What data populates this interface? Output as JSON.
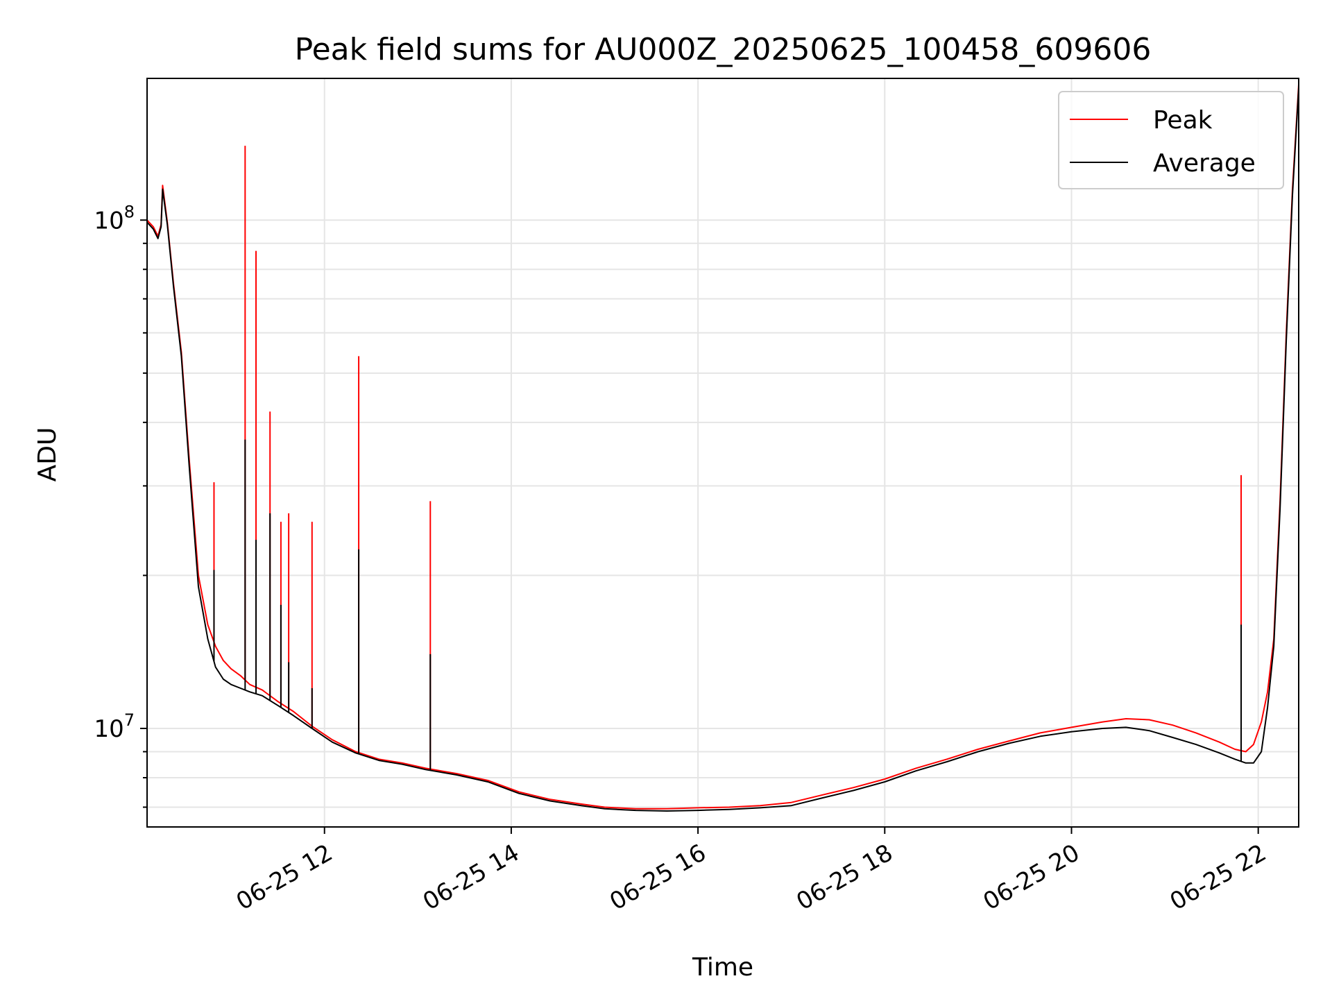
{
  "chart_data": {
    "type": "line",
    "title": "Peak field sums for AU000Z_20250625_100458_609606",
    "xlabel": "Time",
    "ylabel": "ADU",
    "y_scale": "log",
    "ylim": [
      6400000,
      190000000
    ],
    "xlim": [
      "06-25 10:06",
      "06-25 22:26"
    ],
    "x_ticks": [
      {
        "t": "06-25 12:00",
        "label": "06-25 12"
      },
      {
        "t": "06-25 14:00",
        "label": "06-25 14"
      },
      {
        "t": "06-25 16:00",
        "label": "06-25 16"
      },
      {
        "t": "06-25 18:00",
        "label": "06-25 18"
      },
      {
        "t": "06-25 20:00",
        "label": "06-25 20"
      },
      {
        "t": "06-25 22:00",
        "label": "06-25 22"
      }
    ],
    "y_ticks": [
      {
        "value": 10000000,
        "base": "10",
        "exp": "7"
      },
      {
        "value": 100000000,
        "base": "10",
        "exp": "8"
      }
    ],
    "grid": true,
    "legend": {
      "position": "top-right"
    },
    "series": [
      {
        "name": "Peak",
        "color": "#ff0000",
        "x": [
          "06-25 10:06",
          "06-25 10:10",
          "06-25 10:13",
          "06-25 10:15",
          "06-25 10:16",
          "06-25 10:19",
          "06-25 10:23",
          "06-25 10:28",
          "06-25 10:33",
          "06-25 10:39",
          "06-25 10:45",
          "06-25 10:50",
          "06-25 10:55",
          "06-25 11:00",
          "06-25 11:06",
          "06-25 11:12",
          "06-25 11:20",
          "06-25 11:30",
          "06-25 11:40",
          "06-25 11:52",
          "06-25 12:05",
          "06-25 12:20",
          "06-25 12:35",
          "06-25 12:50",
          "06-25 13:05",
          "06-25 13:25",
          "06-25 13:45",
          "06-25 14:05",
          "06-25 14:25",
          "06-25 14:45",
          "06-25 15:00",
          "06-25 15:20",
          "06-25 15:40",
          "06-25 16:00",
          "06-25 16:20",
          "06-25 16:40",
          "06-25 17:00",
          "06-25 17:20",
          "06-25 17:40",
          "06-25 18:00",
          "06-25 18:20",
          "06-25 18:40",
          "06-25 19:00",
          "06-25 19:20",
          "06-25 19:40",
          "06-25 20:00",
          "06-25 20:20",
          "06-25 20:35",
          "06-25 20:50",
          "06-25 21:05",
          "06-25 21:20",
          "06-25 21:35",
          "06-25 21:45",
          "06-25 21:52",
          "06-25 21:57",
          "06-25 22:02",
          "06-25 22:06",
          "06-25 22:10",
          "06-25 22:14",
          "06-25 22:18",
          "06-25 22:22",
          "06-25 22:26"
        ],
        "y": [
          100000000,
          97000000,
          93000000,
          98000000,
          117000000,
          99000000,
          75000000,
          55000000,
          34000000,
          20000000,
          16000000,
          14500000,
          13600000,
          13100000,
          12700000,
          12200000,
          11900000,
          11300000,
          10800000,
          10100000,
          9500000,
          9000000,
          8700000,
          8550000,
          8350000,
          8150000,
          7900000,
          7500000,
          7250000,
          7100000,
          7000000,
          6950000,
          6950000,
          6980000,
          7000000,
          7050000,
          7150000,
          7400000,
          7650000,
          7950000,
          8350000,
          8700000,
          9100000,
          9450000,
          9800000,
          10050000,
          10300000,
          10450000,
          10400000,
          10150000,
          9800000,
          9400000,
          9100000,
          9000000,
          9300000,
          10300000,
          11800000,
          15000000,
          28000000,
          60000000,
          115000000,
          185000000
        ],
        "spikes": [
          {
            "t": "06-25 10:49",
            "y": 30500000
          },
          {
            "t": "06-25 11:09",
            "y": 140000000
          },
          {
            "t": "06-25 11:16",
            "y": 87000000
          },
          {
            "t": "06-25 11:25",
            "y": 42000000
          },
          {
            "t": "06-25 11:32",
            "y": 25500000
          },
          {
            "t": "06-25 11:37",
            "y": 26500000
          },
          {
            "t": "06-25 11:52",
            "y": 25500000
          },
          {
            "t": "06-25 12:22",
            "y": 54000000
          },
          {
            "t": "06-25 13:08",
            "y": 28000000
          },
          {
            "t": "06-25 21:49",
            "y": 31500000
          }
        ]
      },
      {
        "name": "Average",
        "color": "#000000",
        "x": [
          "06-25 10:06",
          "06-25 10:10",
          "06-25 10:13",
          "06-25 10:15",
          "06-25 10:16",
          "06-25 10:19",
          "06-25 10:23",
          "06-25 10:28",
          "06-25 10:33",
          "06-25 10:39",
          "06-25 10:45",
          "06-25 10:50",
          "06-25 10:55",
          "06-25 11:00",
          "06-25 11:06",
          "06-25 11:12",
          "06-25 11:20",
          "06-25 11:30",
          "06-25 11:40",
          "06-25 11:52",
          "06-25 12:05",
          "06-25 12:20",
          "06-25 12:35",
          "06-25 12:50",
          "06-25 13:05",
          "06-25 13:25",
          "06-25 13:45",
          "06-25 14:05",
          "06-25 14:25",
          "06-25 14:45",
          "06-25 15:00",
          "06-25 15:20",
          "06-25 15:40",
          "06-25 16:00",
          "06-25 16:20",
          "06-25 16:40",
          "06-25 17:00",
          "06-25 17:20",
          "06-25 17:40",
          "06-25 18:00",
          "06-25 18:20",
          "06-25 18:40",
          "06-25 19:00",
          "06-25 19:20",
          "06-25 19:40",
          "06-25 20:00",
          "06-25 20:20",
          "06-25 20:35",
          "06-25 20:50",
          "06-25 21:05",
          "06-25 21:20",
          "06-25 21:35",
          "06-25 21:45",
          "06-25 21:52",
          "06-25 21:57",
          "06-25 22:02",
          "06-25 22:06",
          "06-25 22:10",
          "06-25 22:14",
          "06-25 22:18",
          "06-25 22:22",
          "06-25 22:26"
        ],
        "y": [
          99000000,
          96000000,
          92000000,
          97000000,
          115000000,
          98000000,
          74000000,
          54000000,
          33000000,
          19000000,
          15000000,
          13200000,
          12500000,
          12200000,
          12000000,
          11800000,
          11600000,
          11100000,
          10600000,
          10000000,
          9400000,
          8950000,
          8650000,
          8500000,
          8300000,
          8100000,
          7850000,
          7450000,
          7200000,
          7050000,
          6950000,
          6900000,
          6880000,
          6900000,
          6930000,
          6980000,
          7050000,
          7300000,
          7550000,
          7850000,
          8250000,
          8600000,
          9000000,
          9350000,
          9650000,
          9850000,
          10000000,
          10050000,
          9900000,
          9600000,
          9300000,
          8950000,
          8700000,
          8550000,
          8550000,
          9000000,
          11000000,
          14500000,
          27000000,
          58000000,
          112000000,
          182000000
        ],
        "spikes": [
          {
            "t": "06-25 10:49",
            "y": 20500000
          },
          {
            "t": "06-25 11:09",
            "y": 37000000
          },
          {
            "t": "06-25 11:16",
            "y": 23500000
          },
          {
            "t": "06-25 11:25",
            "y": 26500000
          },
          {
            "t": "06-25 11:32",
            "y": 17500000
          },
          {
            "t": "06-25 11:37",
            "y": 13500000
          },
          {
            "t": "06-25 11:52",
            "y": 12000000
          },
          {
            "t": "06-25 12:22",
            "y": 22500000
          },
          {
            "t": "06-25 13:08",
            "y": 14000000
          },
          {
            "t": "06-25 21:49",
            "y": 16000000
          }
        ]
      }
    ]
  }
}
